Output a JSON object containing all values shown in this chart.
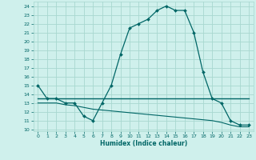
{
  "xlabel": "Humidex (Indice chaleur)",
  "xlim": [
    -0.5,
    23.5
  ],
  "ylim": [
    9.8,
    24.5
  ],
  "yticks": [
    10,
    11,
    12,
    13,
    14,
    15,
    16,
    17,
    18,
    19,
    20,
    21,
    22,
    23,
    24
  ],
  "xticks": [
    0,
    1,
    2,
    3,
    4,
    5,
    6,
    7,
    8,
    9,
    10,
    11,
    12,
    13,
    14,
    15,
    16,
    17,
    18,
    19,
    20,
    21,
    22,
    23
  ],
  "bg_color": "#cff0ec",
  "line_color": "#006666",
  "grid_color": "#a8d8d0",
  "line1_x": [
    0,
    1,
    2,
    3,
    4,
    5,
    6,
    7,
    8,
    9,
    10,
    11,
    12,
    13,
    14,
    15,
    16,
    17,
    18,
    19,
    20,
    21,
    22,
    23
  ],
  "line1_y": [
    15.0,
    13.5,
    13.5,
    13.0,
    13.0,
    11.5,
    11.0,
    13.0,
    15.0,
    18.5,
    21.5,
    22.0,
    22.5,
    23.5,
    24.0,
    23.5,
    23.5,
    21.0,
    16.5,
    13.5,
    13.0,
    11.0,
    10.5,
    10.5
  ],
  "line2_x": [
    0,
    10,
    19,
    23
  ],
  "line2_y": [
    13.5,
    13.5,
    13.5,
    13.5
  ],
  "line3_x": [
    0,
    1,
    2,
    3,
    4,
    5,
    6,
    7,
    8,
    9,
    10,
    11,
    12,
    13,
    14,
    15,
    16,
    17,
    18,
    19,
    20,
    21,
    22,
    23
  ],
  "line3_y": [
    13.0,
    13.0,
    13.0,
    12.8,
    12.7,
    12.5,
    12.3,
    12.2,
    12.1,
    12.0,
    11.9,
    11.8,
    11.7,
    11.6,
    11.5,
    11.4,
    11.3,
    11.2,
    11.1,
    11.0,
    10.8,
    10.5,
    10.3,
    10.3
  ]
}
